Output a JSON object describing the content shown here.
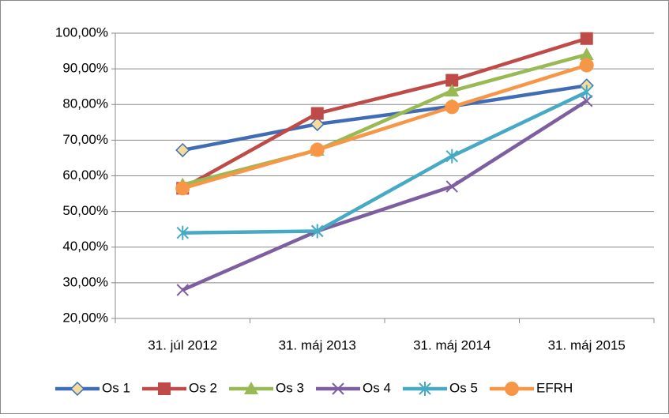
{
  "chart_data": {
    "type": "line",
    "categories": [
      "31. júl 2012",
      "31. máj 2013",
      "31. máj 2014",
      "31. máj 2015"
    ],
    "series": [
      {
        "name": "Os 1",
        "color": "#3f6cb5",
        "marker": "diamond",
        "values": [
          67.2,
          74.5,
          79.5,
          85.3
        ]
      },
      {
        "name": "Os 2",
        "color": "#be4b48",
        "marker": "square",
        "values": [
          56.5,
          77.5,
          86.8,
          98.5
        ]
      },
      {
        "name": "Os 3",
        "color": "#98b954",
        "marker": "triangle",
        "values": [
          57.5,
          67.2,
          83.8,
          94.0
        ]
      },
      {
        "name": "Os 4",
        "color": "#7d5fa0",
        "marker": "x",
        "values": [
          28.0,
          44.5,
          57.0,
          81.0
        ]
      },
      {
        "name": "Os 5",
        "color": "#46aac5",
        "marker": "star",
        "values": [
          44.0,
          44.5,
          65.5,
          83.5
        ]
      },
      {
        "name": "EFRH",
        "color": "#f79646",
        "marker": "circle",
        "values": [
          56.5,
          67.3,
          79.3,
          91.0
        ]
      }
    ],
    "ylim": [
      20,
      100
    ],
    "yticks": [
      {
        "value": 20,
        "label": "20,00%"
      },
      {
        "value": 30,
        "label": "30,00%"
      },
      {
        "value": 40,
        "label": "40,00%"
      },
      {
        "value": 50,
        "label": "50,00%"
      },
      {
        "value": 60,
        "label": "60,00%"
      },
      {
        "value": 70,
        "label": "70,00%"
      },
      {
        "value": 80,
        "label": "80,00%"
      },
      {
        "value": 90,
        "label": "90,00%"
      },
      {
        "value": 100,
        "label": "100,00%"
      }
    ],
    "grid": true,
    "legend": "bottom"
  }
}
